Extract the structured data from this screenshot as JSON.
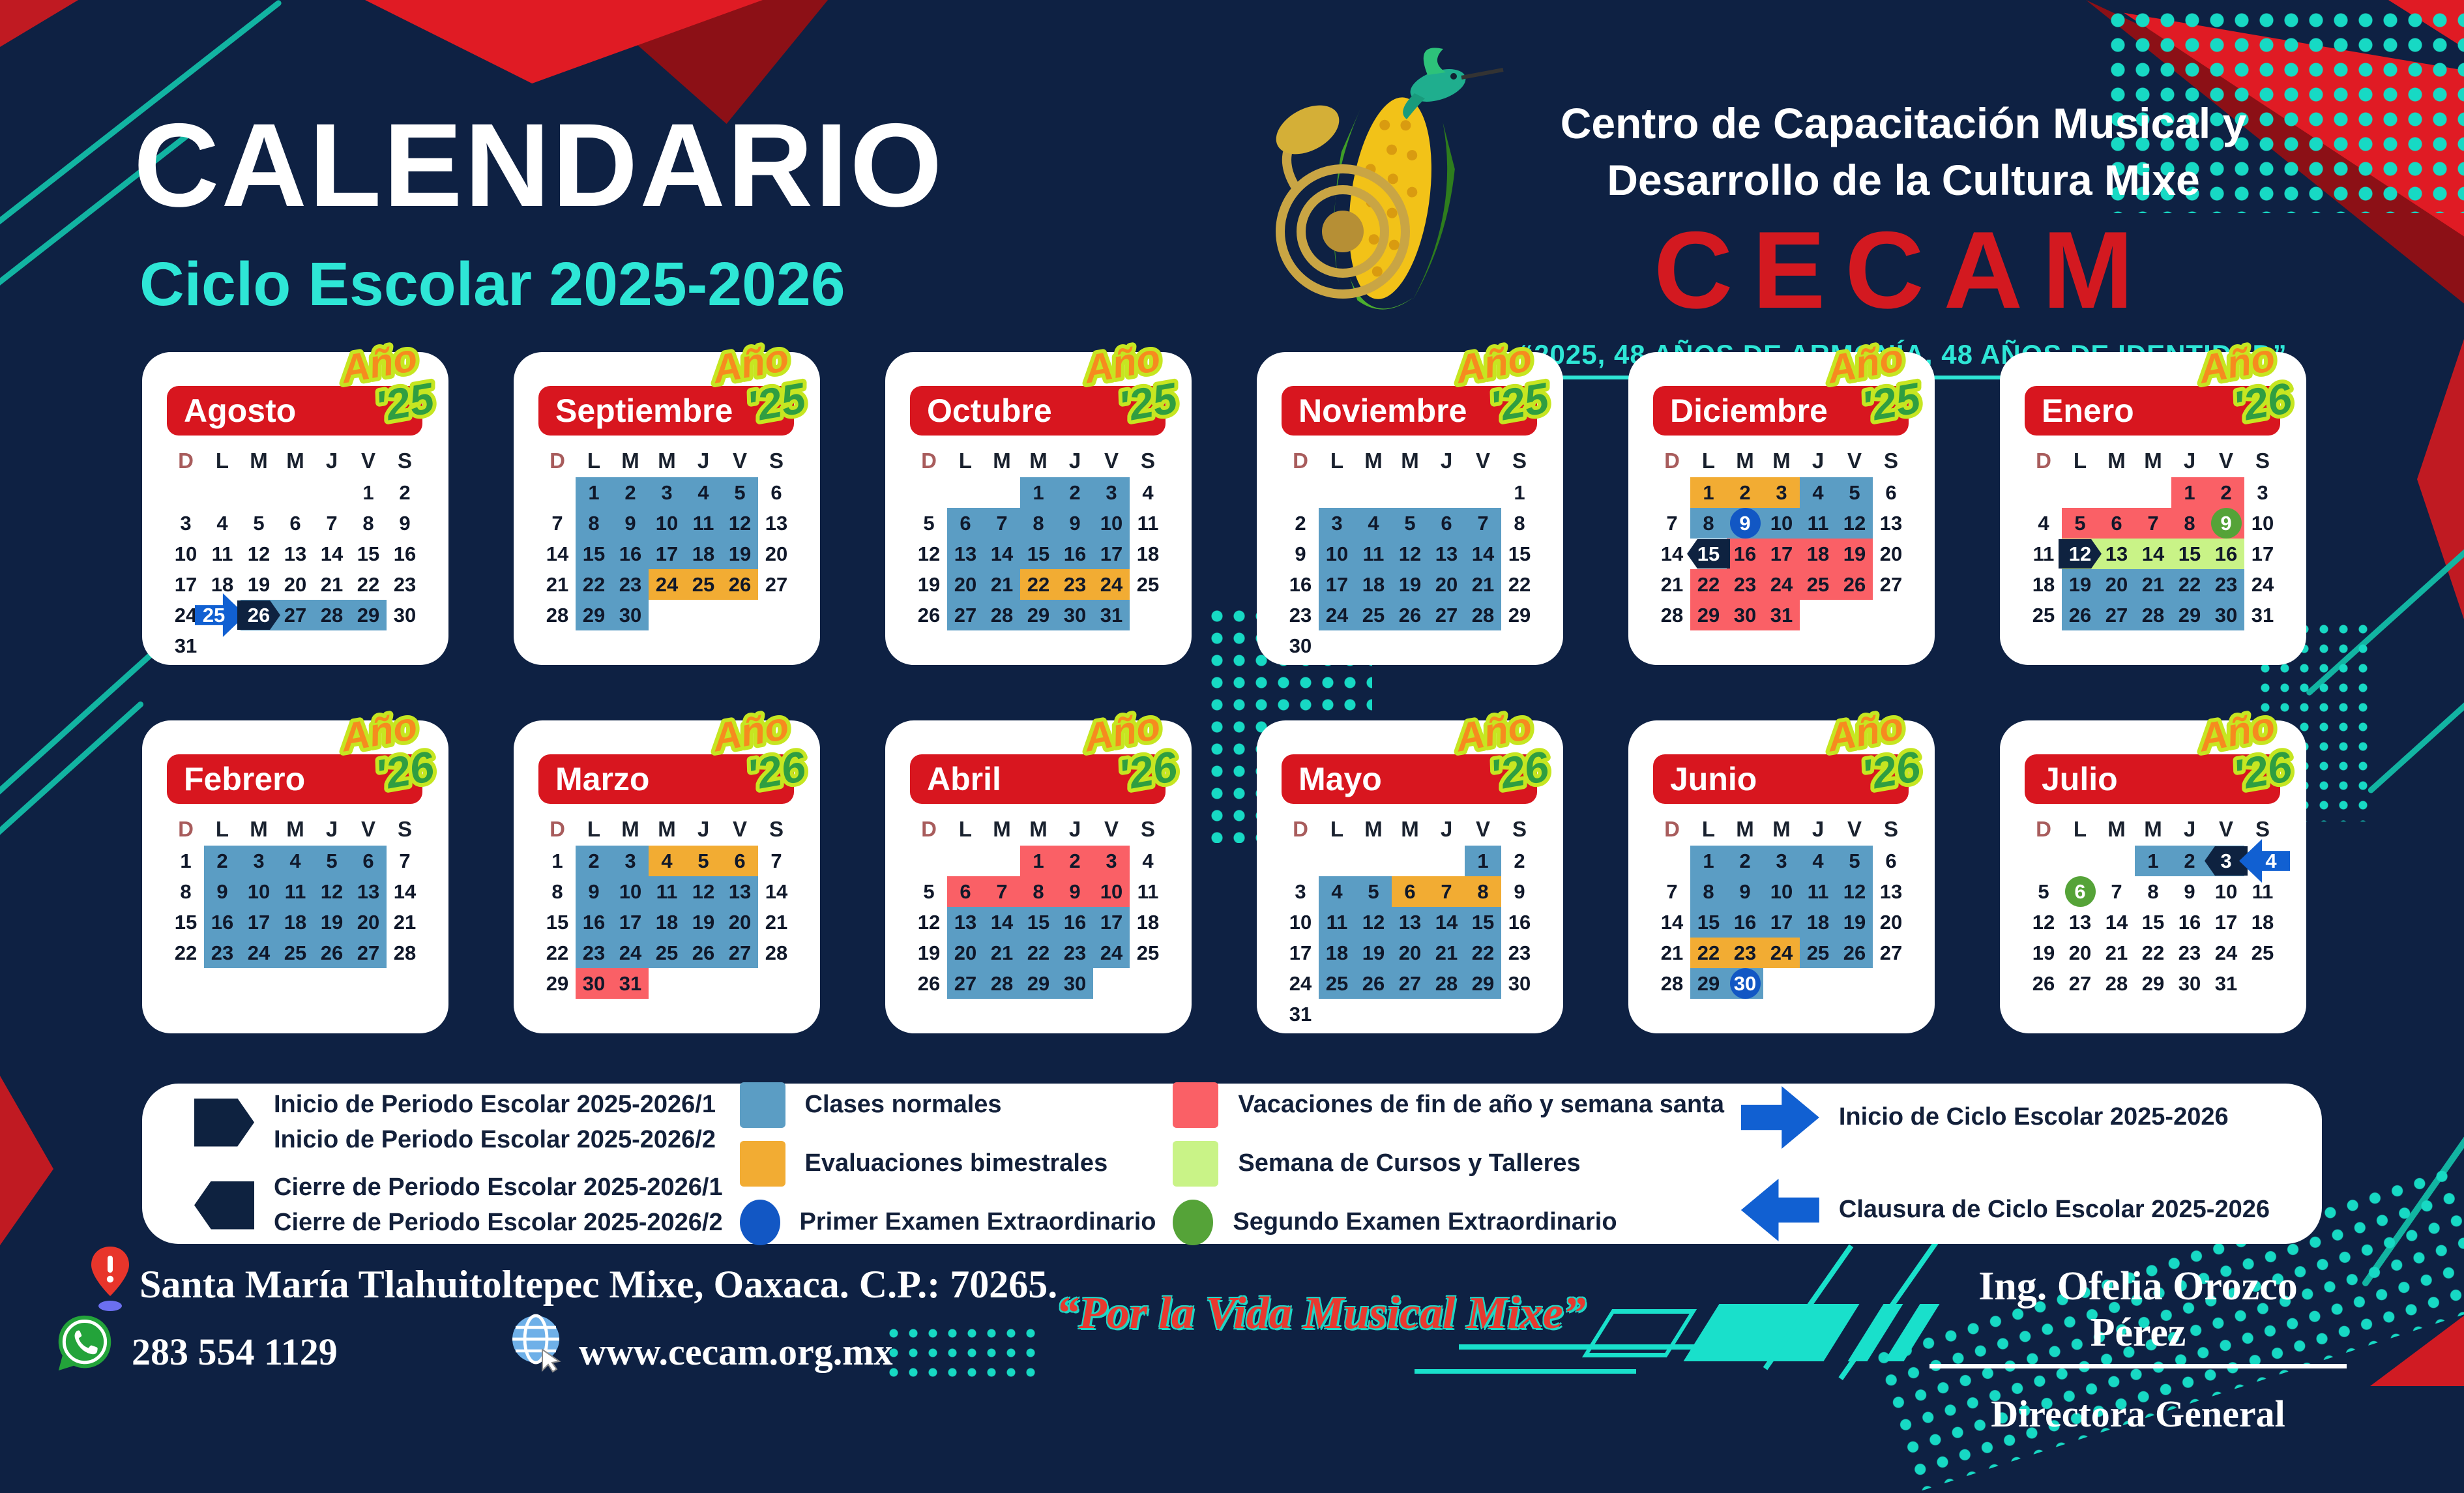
{
  "header": {
    "title": "CALENDARIO",
    "subtitle": "Ciclo Escolar 2025-2026",
    "org_line1": "Centro de Capacitación Musical y",
    "org_line2": "Desarrollo de la Cultura Mixe",
    "org_acronym": "CECAM",
    "motto": "“2025, 48 AÑOS DE ARMONÍA, 48 AÑOS DE IDENTIDAD”"
  },
  "calendar": {
    "badge_word": "Año"
  },
  "weekday_headers": [
    "D",
    "L",
    "M",
    "M",
    "J",
    "V",
    "S"
  ],
  "months": [
    {
      "name": "Agosto",
      "year_badge": "'25",
      "first_weekday": 5,
      "num_days": 31,
      "day_styles": {
        "25": "inicio-ciclo",
        "26": "blue+inicio-periodo",
        "27": "blue",
        "28": "blue",
        "29": "blue"
      }
    },
    {
      "name": "Septiembre",
      "year_badge": "'25",
      "first_weekday": 1,
      "num_days": 30,
      "day_styles": {
        "1": "blue",
        "2": "blue",
        "3": "blue",
        "4": "blue",
        "5": "blue",
        "8": "blue",
        "9": "blue",
        "10": "blue",
        "11": "blue",
        "12": "blue",
        "15": "blue",
        "16": "blue",
        "17": "blue",
        "18": "blue",
        "19": "blue",
        "22": "blue",
        "23": "blue",
        "24": "orange",
        "25": "orange",
        "26": "orange",
        "29": "blue",
        "30": "blue"
      }
    },
    {
      "name": "Octubre",
      "year_badge": "'25",
      "first_weekday": 3,
      "num_days": 31,
      "day_styles": {
        "1": "blue",
        "2": "blue",
        "3": "blue",
        "6": "blue",
        "7": "blue",
        "8": "blue",
        "9": "blue",
        "10": "blue",
        "13": "blue",
        "14": "blue",
        "15": "blue",
        "16": "blue",
        "17": "blue",
        "20": "blue",
        "21": "blue",
        "22": "orange",
        "23": "orange",
        "24": "orange",
        "27": "blue",
        "28": "blue",
        "29": "blue",
        "30": "blue",
        "31": "blue"
      }
    },
    {
      "name": "Noviembre",
      "year_badge": "'25",
      "first_weekday": 6,
      "num_days": 30,
      "day_styles": {
        "3": "blue",
        "4": "blue",
        "5": "blue",
        "6": "blue",
        "7": "blue",
        "10": "blue",
        "11": "blue",
        "12": "blue",
        "13": "blue",
        "14": "blue",
        "17": "blue",
        "18": "blue",
        "19": "blue",
        "20": "blue",
        "21": "blue",
        "24": "blue",
        "25": "blue",
        "26": "blue",
        "27": "blue",
        "28": "blue"
      }
    },
    {
      "name": "Diciembre",
      "year_badge": "'25",
      "first_weekday": 1,
      "num_days": 31,
      "day_styles": {
        "1": "orange",
        "2": "orange",
        "3": "orange",
        "4": "blue",
        "5": "blue",
        "8": "blue",
        "9": "blue+examen1",
        "10": "blue",
        "11": "blue",
        "12": "blue",
        "15": "cierre-periodo",
        "16": "red",
        "17": "red",
        "18": "red",
        "19": "red",
        "22": "red",
        "23": "red",
        "24": "red",
        "25": "red",
        "26": "red",
        "29": "red",
        "30": "red",
        "31": "red"
      }
    },
    {
      "name": "Enero",
      "year_badge": "'26",
      "first_weekday": 4,
      "num_days": 31,
      "day_styles": {
        "1": "red",
        "2": "red",
        "5": "red",
        "6": "red",
        "7": "red",
        "8": "red",
        "9": "red+examen2",
        "12": "green+inicio-periodo",
        "13": "green",
        "14": "green",
        "15": "green",
        "16": "green",
        "19": "blue",
        "20": "blue",
        "21": "blue",
        "22": "blue",
        "23": "blue",
        "26": "blue",
        "27": "blue",
        "28": "blue",
        "29": "blue",
        "30": "blue"
      }
    },
    {
      "name": "Febrero",
      "year_badge": "'26",
      "first_weekday": 0,
      "num_days": 28,
      "day_styles": {
        "2": "blue",
        "3": "blue",
        "4": "blue",
        "5": "blue",
        "6": "blue",
        "9": "blue",
        "10": "blue",
        "11": "blue",
        "12": "blue",
        "13": "blue",
        "16": "blue",
        "17": "blue",
        "18": "blue",
        "19": "blue",
        "20": "blue",
        "23": "blue",
        "24": "blue",
        "25": "blue",
        "26": "blue",
        "27": "blue"
      }
    },
    {
      "name": "Marzo",
      "year_badge": "'26",
      "first_weekday": 0,
      "num_days": 31,
      "day_styles": {
        "2": "blue",
        "3": "blue",
        "4": "orange",
        "5": "orange",
        "6": "orange",
        "9": "blue",
        "10": "blue",
        "11": "blue",
        "12": "blue",
        "13": "blue",
        "16": "blue",
        "17": "blue",
        "18": "blue",
        "19": "blue",
        "20": "blue",
        "23": "blue",
        "24": "blue",
        "25": "blue",
        "26": "blue",
        "27": "blue",
        "30": "red",
        "31": "red"
      }
    },
    {
      "name": "Abril",
      "year_badge": "'26",
      "first_weekday": 3,
      "num_days": 30,
      "day_styles": {
        "1": "red",
        "2": "red",
        "3": "red",
        "6": "red",
        "7": "red",
        "8": "red",
        "9": "red",
        "10": "red",
        "13": "blue",
        "14": "blue",
        "15": "blue",
        "16": "blue",
        "17": "blue",
        "20": "blue",
        "21": "blue",
        "22": "blue",
        "23": "blue",
        "24": "blue",
        "27": "blue",
        "28": "blue",
        "29": "blue",
        "30": "blue"
      }
    },
    {
      "name": "Mayo",
      "year_badge": "'26",
      "first_weekday": 5,
      "num_days": 31,
      "day_styles": {
        "1": "blue",
        "4": "blue",
        "5": "blue",
        "6": "orange",
        "7": "orange",
        "8": "orange",
        "11": "blue",
        "12": "blue",
        "13": "blue",
        "14": "blue",
        "15": "blue",
        "18": "blue",
        "19": "blue",
        "20": "blue",
        "21": "blue",
        "22": "blue",
        "25": "blue",
        "26": "blue",
        "27": "blue",
        "28": "blue",
        "29": "blue"
      }
    },
    {
      "name": "Junio",
      "year_badge": "'26",
      "first_weekday": 1,
      "num_days": 30,
      "day_styles": {
        "1": "blue",
        "2": "blue",
        "3": "blue",
        "4": "blue",
        "5": "blue",
        "8": "blue",
        "9": "blue",
        "10": "blue",
        "11": "blue",
        "12": "blue",
        "15": "blue",
        "16": "blue",
        "17": "blue",
        "18": "blue",
        "19": "blue",
        "22": "orange",
        "23": "orange",
        "24": "orange",
        "25": "blue",
        "26": "blue",
        "29": "blue",
        "30": "blue+examen1"
      }
    },
    {
      "name": "Julio",
      "year_badge": "'26",
      "first_weekday": 3,
      "num_days": 31,
      "day_styles": {
        "1": "blue",
        "2": "blue",
        "3": "blue+cierre-periodo",
        "4": "clausura-ciclo",
        "6": "examen2"
      }
    }
  ],
  "legend": {
    "inicio_periodo_line1": "Inicio de Periodo Escolar 2025-2026/1",
    "inicio_periodo_line2": "Inicio de Periodo Escolar 2025-2026/2",
    "cierre_periodo_line1": "Cierre de Periodo Escolar 2025-2026/1",
    "cierre_periodo_line2": "Cierre de Periodo Escolar 2025-2026/2",
    "clases": "Clases normales",
    "evaluaciones": "Evaluaciones bimestrales",
    "examen1": "Primer Examen Extraordinario",
    "vacaciones": "Vacaciones de fin de año y semana santa",
    "cursos": "Semana de Cursos y Talleres",
    "examen2": "Segundo Examen Extraordinario",
    "inicio_ciclo": "Inicio de Ciclo Escolar 2025-2026",
    "clausura_ciclo": "Clausura de Ciclo Escolar 2025-2026"
  },
  "footer": {
    "address": "Santa María Tlahuitoltepec Mixe, Oaxaca. C.P.: 70265.",
    "phone": "283 554 1129",
    "website": "www.cecam.org.mx",
    "slogan": "“Por la Vida Musical Mixe”",
    "director_name": "Ing. Ofelia Orozco Pérez",
    "director_title": "Directora General"
  },
  "colors": {
    "background": "#0e2143",
    "accent_red": "#d8161f",
    "clases_blue": "#5b9dc4",
    "evaluaciones_orange": "#f2ac33",
    "vacaciones_red": "#fa6066",
    "cursos_green": "#c9f387",
    "marker_navy": "#0e2240",
    "ciclo_blue": "#1160d2",
    "examen1_blue": "#1257c4",
    "examen2_green": "#55a338",
    "cyan": "#2ee6d6"
  }
}
